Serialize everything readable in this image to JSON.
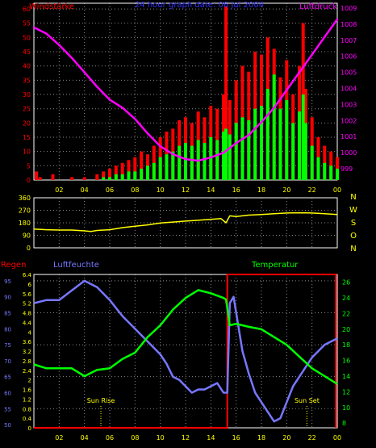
{
  "header": {
    "left_title": "Windstärke",
    "center_title": "24 hour graph date: 06 Jul 2004",
    "right_title": "Luftdruck"
  },
  "colors": {
    "background": "#000000",
    "grid": "#8a8a8a",
    "tick_label": "#ffff00",
    "wind": "#ff0000",
    "gust": "#00ff00",
    "pressure": "#ff00ff",
    "direction": "#ffff00",
    "rain": "#ff0000",
    "humidity": "#7777ff",
    "temperature": "#00ff00",
    "frame": "#ffffff"
  },
  "chart_data": [
    {
      "type": "bar",
      "title": "24 hour graph date: 06 Jul 2004",
      "x": {
        "ticks": [
          "02",
          "04",
          "06",
          "08",
          "10",
          "12",
          "14",
          "16",
          "18",
          "20",
          "22",
          "00"
        ],
        "range": [
          0,
          24
        ]
      },
      "left_axis": {
        "label": "Windstärke",
        "ticks": [
          0,
          5,
          10,
          15,
          20,
          25,
          30,
          35,
          40,
          45,
          50,
          55,
          60
        ],
        "range": [
          0,
          62
        ]
      },
      "right_axis": {
        "label": "Luftdruck",
        "ticks": [
          999,
          1000,
          1001,
          1002,
          1003,
          1004,
          1005,
          1006,
          1007,
          1008,
          1009
        ],
        "range": [
          998.3,
          1009.3
        ]
      },
      "series": [
        {
          "name": "wind",
          "kind": "bars",
          "axis": "left",
          "points": [
            [
              0.2,
              3
            ],
            [
              0.5,
              1
            ],
            [
              1.0,
              0
            ],
            [
              1.5,
              2
            ],
            [
              2.0,
              0
            ],
            [
              2.5,
              0
            ],
            [
              3.0,
              1
            ],
            [
              3.5,
              0
            ],
            [
              4.0,
              1
            ],
            [
              4.5,
              0
            ],
            [
              5.0,
              2
            ],
            [
              5.5,
              3
            ],
            [
              6.0,
              4
            ],
            [
              6.5,
              5
            ],
            [
              7.0,
              6
            ],
            [
              7.5,
              7
            ],
            [
              8.0,
              8
            ],
            [
              8.5,
              10
            ],
            [
              9.0,
              9
            ],
            [
              9.5,
              12
            ],
            [
              10.0,
              15
            ],
            [
              10.5,
              17
            ],
            [
              11.0,
              18
            ],
            [
              11.5,
              21
            ],
            [
              12.0,
              22
            ],
            [
              12.5,
              20
            ],
            [
              13.0,
              24
            ],
            [
              13.5,
              22
            ],
            [
              14.0,
              26
            ],
            [
              14.5,
              25
            ],
            [
              15.0,
              30
            ],
            [
              15.2,
              61
            ],
            [
              15.5,
              28
            ],
            [
              16.0,
              35
            ],
            [
              16.5,
              40
            ],
            [
              17.0,
              38
            ],
            [
              17.5,
              45
            ],
            [
              18.0,
              44
            ],
            [
              18.5,
              50
            ],
            [
              19.0,
              46
            ],
            [
              19.5,
              36
            ],
            [
              20.0,
              42
            ],
            [
              20.5,
              30
            ],
            [
              21.0,
              40
            ],
            [
              21.3,
              55
            ],
            [
              21.5,
              32
            ],
            [
              22.0,
              22
            ],
            [
              22.5,
              15
            ],
            [
              23.0,
              12
            ],
            [
              23.5,
              10
            ],
            [
              24.0,
              8
            ]
          ]
        },
        {
          "name": "gust",
          "kind": "bars",
          "axis": "left",
          "points": [
            [
              0.2,
              0
            ],
            [
              0.5,
              0
            ],
            [
              1.0,
              0
            ],
            [
              1.5,
              0
            ],
            [
              2.0,
              0
            ],
            [
              2.5,
              0
            ],
            [
              3.0,
              0
            ],
            [
              3.5,
              0
            ],
            [
              4.0,
              0
            ],
            [
              4.5,
              0
            ],
            [
              5.0,
              0
            ],
            [
              5.5,
              1
            ],
            [
              6.0,
              1
            ],
            [
              6.5,
              2
            ],
            [
              7.0,
              2
            ],
            [
              7.5,
              3
            ],
            [
              8.0,
              3
            ],
            [
              8.5,
              4
            ],
            [
              9.0,
              5
            ],
            [
              9.5,
              6
            ],
            [
              10.0,
              8
            ],
            [
              10.5,
              9
            ],
            [
              11.0,
              10
            ],
            [
              11.5,
              12
            ],
            [
              12.0,
              13
            ],
            [
              12.5,
              12
            ],
            [
              13.0,
              14
            ],
            [
              13.5,
              13
            ],
            [
              14.0,
              15
            ],
            [
              14.5,
              14
            ],
            [
              15.0,
              17
            ],
            [
              15.2,
              18
            ],
            [
              15.5,
              16
            ],
            [
              16.0,
              20
            ],
            [
              16.5,
              22
            ],
            [
              17.0,
              21
            ],
            [
              17.5,
              25
            ],
            [
              18.0,
              26
            ],
            [
              18.5,
              32
            ],
            [
              19.0,
              37
            ],
            [
              19.5,
              25
            ],
            [
              20.0,
              28
            ],
            [
              20.5,
              20
            ],
            [
              21.0,
              24
            ],
            [
              21.3,
              30
            ],
            [
              21.5,
              20
            ],
            [
              22.0,
              12
            ],
            [
              22.5,
              8
            ],
            [
              23.0,
              6
            ],
            [
              23.5,
              5
            ],
            [
              24.0,
              4
            ]
          ]
        },
        {
          "name": "pressure",
          "kind": "line",
          "axis": "right",
          "points": [
            [
              0.0,
              1007.8
            ],
            [
              1.0,
              1007.4
            ],
            [
              2.0,
              1006.7
            ],
            [
              3.0,
              1005.9
            ],
            [
              4.0,
              1005.0
            ],
            [
              5.0,
              1004.1
            ],
            [
              6.0,
              1003.3
            ],
            [
              7.0,
              1002.8
            ],
            [
              8.0,
              1002.1
            ],
            [
              9.0,
              1001.2
            ],
            [
              10.0,
              1000.4
            ],
            [
              11.0,
              999.9
            ],
            [
              12.0,
              999.6
            ],
            [
              13.0,
              999.5
            ],
            [
              14.0,
              999.7
            ],
            [
              15.0,
              1000.0
            ],
            [
              16.0,
              1000.6
            ],
            [
              17.0,
              1001.1
            ],
            [
              18.0,
              1001.9
            ],
            [
              19.0,
              1002.8
            ],
            [
              20.0,
              1003.9
            ],
            [
              21.0,
              1005.0
            ],
            [
              22.0,
              1006.1
            ],
            [
              23.0,
              1007.2
            ],
            [
              24.0,
              1008.3
            ]
          ]
        }
      ]
    },
    {
      "type": "line",
      "x": {
        "ticks": [
          "02",
          "04",
          "06",
          "08",
          "10",
          "12",
          "14",
          "16",
          "18",
          "20",
          "22",
          "00"
        ],
        "range": [
          0,
          24
        ]
      },
      "left_axis": {
        "ticks": [
          0,
          90,
          180,
          270,
          360
        ],
        "range": [
          0,
          360
        ]
      },
      "right_labels": [
        "N",
        "W",
        "S",
        "O",
        "N"
      ],
      "series": [
        {
          "name": "direction",
          "points": [
            [
              0.0,
              135
            ],
            [
              1.0,
              130
            ],
            [
              2.0,
              128
            ],
            [
              3.0,
              128
            ],
            [
              4.0,
              122
            ],
            [
              4.5,
              118
            ],
            [
              5.0,
              125
            ],
            [
              6.0,
              130
            ],
            [
              7.0,
              145
            ],
            [
              8.0,
              155
            ],
            [
              9.0,
              165
            ],
            [
              10.0,
              178
            ],
            [
              11.0,
              185
            ],
            [
              12.0,
              192
            ],
            [
              13.0,
              198
            ],
            [
              14.0,
              205
            ],
            [
              14.8,
              210
            ],
            [
              15.2,
              180
            ],
            [
              15.5,
              230
            ],
            [
              16.0,
              225
            ],
            [
              17.0,
              235
            ],
            [
              18.0,
              240
            ],
            [
              19.0,
              245
            ],
            [
              20.0,
              250
            ],
            [
              21.0,
              252
            ],
            [
              22.0,
              250
            ],
            [
              23.0,
              245
            ],
            [
              24.0,
              240
            ]
          ]
        }
      ]
    },
    {
      "type": "line",
      "x": {
        "ticks": [
          "02",
          "04",
          "06",
          "08",
          "10",
          "12",
          "14",
          "16",
          "18",
          "20",
          "22",
          "00"
        ],
        "range": [
          0,
          24
        ]
      },
      "labels": {
        "rain": "Regen",
        "humidity": "Luftfeuchte",
        "temperature": "Temperatur"
      },
      "rain_axis": {
        "label": "Regen",
        "ticks": [
          "0",
          "0.4",
          "0.8",
          "1.2",
          "1.6",
          "2",
          "2.4",
          "2.8",
          "3.2",
          "3.6",
          "4",
          "4.4",
          "4.8",
          "5.2",
          "5.6",
          "6",
          "6.4"
        ],
        "range": [
          0,
          6.4
        ]
      },
      "humidity_axis": {
        "label": "Luftfeuchte",
        "ticks": [
          50,
          55,
          60,
          65,
          70,
          75,
          80,
          85,
          90,
          95
        ],
        "range": [
          49,
          97
        ]
      },
      "temperature_axis": {
        "label": "Temperatur",
        "ticks": [
          8,
          10,
          12,
          14,
          16,
          18,
          20,
          22,
          24,
          26
        ],
        "range": [
          7.4,
          27
        ]
      },
      "annotations": [
        {
          "text": "Sun Rise",
          "x": 5.3
        },
        {
          "text": "Sun Set",
          "x": 21.6
        }
      ],
      "series": [
        {
          "name": "rain",
          "points": [
            [
              0.0,
              0
            ],
            [
              15.3,
              0
            ],
            [
              15.3,
              6.4
            ],
            [
              23.9,
              6.4
            ],
            [
              23.9,
              0
            ]
          ]
        },
        {
          "name": "humidity",
          "points": [
            [
              0.0,
              88
            ],
            [
              1.0,
              89
            ],
            [
              2.0,
              89
            ],
            [
              3.0,
              92
            ],
            [
              4.0,
              95
            ],
            [
              5.0,
              93
            ],
            [
              6.0,
              89
            ],
            [
              7.0,
              84
            ],
            [
              8.0,
              80
            ],
            [
              9.0,
              76
            ],
            [
              10.0,
              72
            ],
            [
              10.5,
              69
            ],
            [
              11.0,
              65
            ],
            [
              11.5,
              64
            ],
            [
              12.0,
              62
            ],
            [
              12.5,
              60
            ],
            [
              13.0,
              61
            ],
            [
              13.5,
              61
            ],
            [
              14.0,
              62
            ],
            [
              14.5,
              63
            ],
            [
              15.0,
              60
            ],
            [
              15.3,
              60
            ],
            [
              15.5,
              88
            ],
            [
              15.8,
              90
            ],
            [
              16.0,
              85
            ],
            [
              16.5,
              73
            ],
            [
              17.0,
              66
            ],
            [
              17.5,
              60
            ],
            [
              18.0,
              57
            ],
            [
              18.5,
              54
            ],
            [
              19.0,
              51
            ],
            [
              19.5,
              52
            ],
            [
              20.0,
              57
            ],
            [
              20.5,
              62
            ],
            [
              21.0,
              65
            ],
            [
              22.0,
              71
            ],
            [
              22.5,
              73
            ],
            [
              23.0,
              75
            ],
            [
              23.5,
              76
            ],
            [
              24.0,
              77
            ]
          ]
        },
        {
          "name": "temperature",
          "points": [
            [
              0.0,
              15.5
            ],
            [
              1.0,
              15.0
            ],
            [
              2.0,
              15.0
            ],
            [
              3.0,
              15.0
            ],
            [
              4.0,
              14.0
            ],
            [
              5.0,
              14.8
            ],
            [
              6.0,
              15.0
            ],
            [
              7.0,
              16.2
            ],
            [
              8.0,
              17.0
            ],
            [
              9.0,
              19.0
            ],
            [
              10.0,
              20.5
            ],
            [
              11.0,
              22.5
            ],
            [
              12.0,
              24.0
            ],
            [
              13.0,
              25.0
            ],
            [
              14.0,
              24.6
            ],
            [
              15.0,
              24.0
            ],
            [
              15.2,
              23.8
            ],
            [
              15.5,
              20.5
            ],
            [
              16.0,
              20.7
            ],
            [
              17.0,
              20.3
            ],
            [
              18.0,
              20.0
            ],
            [
              19.0,
              19.0
            ],
            [
              20.0,
              18.0
            ],
            [
              21.0,
              16.5
            ],
            [
              22.0,
              15.0
            ],
            [
              23.0,
              14.0
            ],
            [
              24.0,
              13.0
            ]
          ]
        }
      ]
    }
  ]
}
